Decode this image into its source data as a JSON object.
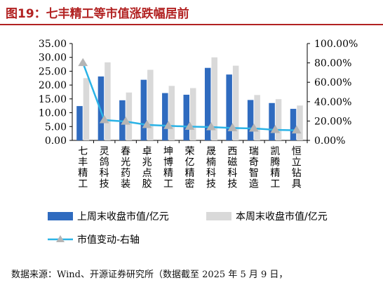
{
  "header": {
    "title": "图19：七丰精工等市值涨跌幅居前"
  },
  "chart_data": {
    "type": "bar",
    "title": "图19：七丰精工等市值涨跌幅居前",
    "categories": [
      "七丰精工",
      "灵鸽科技",
      "春光药装",
      "卓兆点胶",
      "坤博精工",
      "荣亿精密",
      "晟楠科技",
      "西磁科技",
      "瑞奇智造",
      "凯腾精工",
      "恒立钻具"
    ],
    "series": [
      {
        "name": "上周末收盘市值/亿元",
        "axis": "left",
        "color": "#2f6bbf",
        "values": [
          12.4,
          23.1,
          14.5,
          21.9,
          17.1,
          16.5,
          26.2,
          23.8,
          14.6,
          13.5,
          11.4
        ]
      },
      {
        "name": "本周末收盘市值/亿元",
        "axis": "left",
        "color": "#d9d9d9",
        "values": [
          22.5,
          28.2,
          17.3,
          25.5,
          19.7,
          18.9,
          30.0,
          27.0,
          16.4,
          14.9,
          12.6
        ]
      },
      {
        "name": "市值变动-右轴",
        "axis": "right",
        "type": "line",
        "color": "#2bb3e6",
        "values": [
          80.0,
          21.0,
          19.5,
          16.0,
          15.0,
          14.2,
          13.8,
          12.8,
          12.3,
          10.9,
          10.4
        ]
      }
    ],
    "left_axis": {
      "ylim": [
        0,
        35
      ],
      "ticks": [
        "0.00",
        "5.00",
        "10.00",
        "15.00",
        "20.00",
        "25.00",
        "30.00",
        "35.00"
      ]
    },
    "right_axis": {
      "ylim": [
        0,
        100
      ],
      "ticks": [
        "0.00%",
        "20.00%",
        "40.00%",
        "60.00%",
        "80.00%",
        "100.00%"
      ]
    },
    "grid": false,
    "legend_position": "bottom"
  },
  "footer": {
    "source": "数据来源：Wind、开源证券研究所（数据截至 2025 年 5 月 9 日，"
  }
}
